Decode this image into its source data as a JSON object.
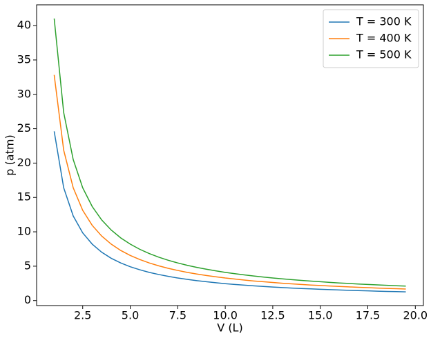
{
  "chart_data": {
    "type": "line",
    "xlabel": "V (L)",
    "ylabel": "p (atm)",
    "x": [
      1.0,
      1.5,
      2.0,
      2.5,
      3.0,
      3.5,
      4.0,
      4.5,
      5.0,
      5.5,
      6.0,
      6.5,
      7.0,
      7.5,
      8.0,
      8.5,
      9.0,
      9.5,
      10.0,
      10.5,
      11.0,
      11.5,
      12.0,
      12.5,
      13.0,
      13.5,
      14.0,
      14.5,
      15.0,
      15.5,
      16.0,
      16.5,
      17.0,
      17.5,
      18.0,
      18.5,
      19.0,
      19.5
    ],
    "series": [
      {
        "name": "T = 300 K",
        "color": "#1f77b4",
        "values": [
          24.62,
          16.41,
          12.31,
          9.85,
          8.21,
          7.03,
          6.15,
          5.47,
          4.92,
          4.48,
          4.1,
          3.79,
          3.52,
          3.28,
          3.08,
          2.9,
          2.74,
          2.59,
          2.46,
          2.34,
          2.24,
          2.14,
          2.05,
          1.97,
          1.89,
          1.82,
          1.76,
          1.7,
          1.64,
          1.59,
          1.54,
          1.49,
          1.45,
          1.41,
          1.37,
          1.33,
          1.3,
          1.26
        ]
      },
      {
        "name": "T = 400 K",
        "color": "#ff7f0e",
        "values": [
          32.82,
          21.88,
          16.41,
          13.13,
          10.94,
          9.38,
          8.21,
          7.29,
          6.56,
          5.97,
          5.47,
          5.05,
          4.69,
          4.38,
          4.1,
          3.86,
          3.65,
          3.46,
          3.28,
          3.13,
          2.98,
          2.85,
          2.74,
          2.63,
          2.52,
          2.43,
          2.34,
          2.26,
          2.19,
          2.12,
          2.05,
          1.99,
          1.93,
          1.88,
          1.82,
          1.77,
          1.73,
          1.68
        ]
      },
      {
        "name": "T = 500 K",
        "color": "#2ca02c",
        "values": [
          41.03,
          27.35,
          20.52,
          16.41,
          13.68,
          11.72,
          10.26,
          9.12,
          8.21,
          7.46,
          6.84,
          6.31,
          5.86,
          5.47,
          5.13,
          4.83,
          4.56,
          4.32,
          4.1,
          3.91,
          3.73,
          3.57,
          3.42,
          3.28,
          3.16,
          3.04,
          2.93,
          2.83,
          2.74,
          2.65,
          2.56,
          2.49,
          2.41,
          2.34,
          2.28,
          2.22,
          2.16,
          2.1
        ]
      }
    ],
    "xlim": [
      0.075,
      20.425
    ],
    "xticks": [
      2.5,
      {
        "value": 5.0,
        "label": "5.0"
      },
      7.5,
      {
        "value": 10.0,
        "label": "10.0"
      },
      12.5,
      {
        "value": 15.0,
        "label": "15.0"
      },
      17.5,
      {
        "value": 20.0,
        "label": "20.0"
      }
    ],
    "ylim": [
      -0.73,
      43.02
    ],
    "yticks": [
      0,
      5,
      10,
      15,
      20,
      25,
      30,
      35,
      40
    ],
    "grid": false,
    "legend": "upper right"
  }
}
